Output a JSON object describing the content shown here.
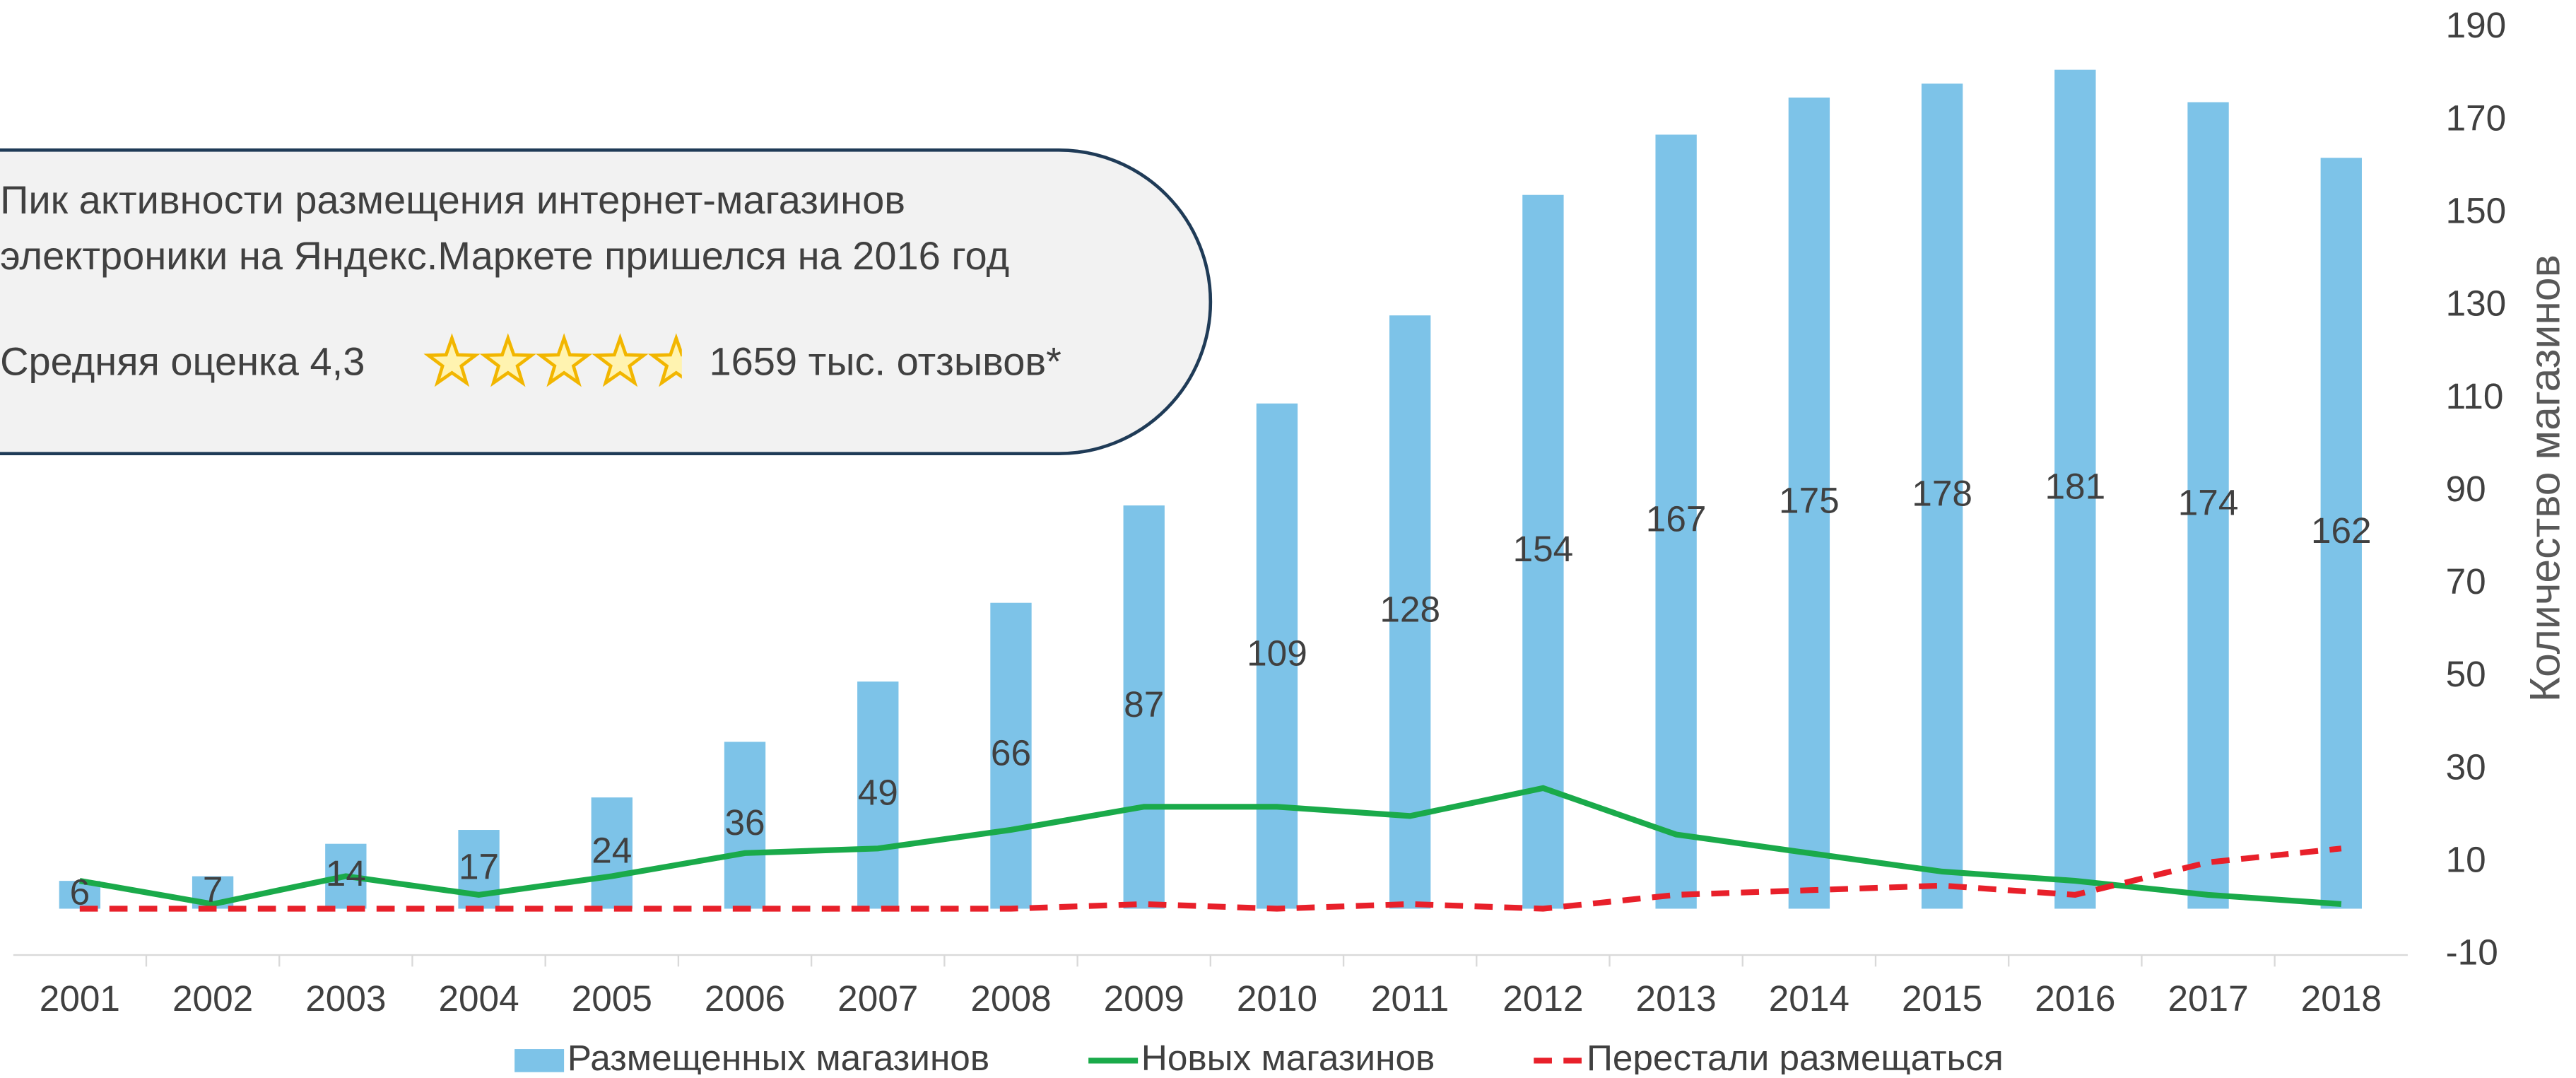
{
  "chart_data": {
    "type": "bar_line",
    "y_label": "Количество магазинов",
    "categories": [
      "2001",
      "2002",
      "2003",
      "2004",
      "2005",
      "2006",
      "2007",
      "2008",
      "2009",
      "2010",
      "2011",
      "2012",
      "2013",
      "2014",
      "2015",
      "2016",
      "2017",
      "2018"
    ],
    "series": [
      {
        "name": "Размещенных магазинов",
        "type": "bar",
        "color": "#7dc3e8",
        "values": [
          6,
          7,
          14,
          17,
          24,
          36,
          49,
          66,
          87,
          109,
          128,
          154,
          167,
          175,
          178,
          181,
          174,
          162
        ]
      },
      {
        "name": "Новых магазинов",
        "type": "line",
        "color": "#1aaa4a",
        "values": [
          6,
          1,
          7,
          3,
          7,
          12,
          13,
          17,
          22,
          22,
          20,
          26,
          16,
          12,
          8,
          6,
          3,
          1
        ]
      },
      {
        "name": "Перестали размещаться",
        "type": "dashed",
        "color": "#e8202a",
        "values": [
          0,
          0,
          0,
          0,
          0,
          0,
          0,
          0,
          1,
          0,
          1,
          0,
          3,
          4,
          5,
          3,
          10,
          13
        ]
      }
    ],
    "ylim": [
      -10,
      190
    ],
    "yticks": [
      -10,
      10,
      30,
      50,
      70,
      90,
      110,
      130,
      150,
      170,
      190
    ],
    "annotation": {
      "lines": [
        "Пик активности размещения интернет-магазинов",
        "электроники на Яндекс.Маркете пришелся на 2016 год"
      ],
      "rating_text": "Средняя оценка 4,3",
      "reviews": "1659 тыс. отзывов*"
    }
  }
}
